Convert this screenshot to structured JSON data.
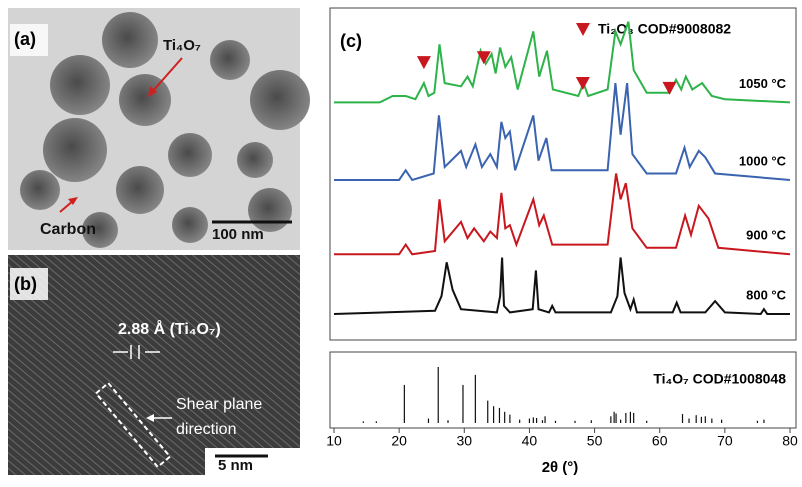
{
  "panel_a": {
    "label": "(a)",
    "particle_label": "Ti₄O₇",
    "carbon_label": "Carbon",
    "scale_bar": "100 nm"
  },
  "panel_b": {
    "label": "(b)",
    "spacing_label": "2.88 Å (Ti₄O₇)",
    "shear_label": [
      "Shear plane",
      "direction"
    ],
    "scale_bar": "5 nm"
  },
  "chart_data": [
    {
      "type": "line",
      "panel_label": "(c)",
      "xlim": [
        10,
        80
      ],
      "ylim": [
        0,
        100
      ],
      "series": [
        {
          "name": "1050 °C",
          "color": "#2db34a",
          "x": [
            10,
            17,
            19,
            21,
            22.5,
            23.8,
            24.5,
            25.4,
            26.2,
            27,
            29.5,
            30.5,
            31.3,
            32.5,
            33.3,
            34.2,
            34.8,
            35.5,
            36.3,
            37.2,
            38.2,
            40.6,
            41.5,
            42.7,
            43.6,
            47.5,
            48.3,
            49,
            52,
            53.2,
            54,
            55.2,
            56,
            58,
            61.5,
            62.5,
            63.3,
            64,
            65,
            66.5,
            68,
            70,
            80
          ],
          "values": [
            72,
            72,
            74,
            74,
            73,
            78,
            74,
            75,
            90,
            78,
            77,
            80,
            77,
            88,
            84,
            87,
            81,
            89,
            83,
            86,
            76,
            94,
            80,
            88,
            76,
            74,
            78,
            74,
            76,
            94,
            90,
            97,
            82,
            75,
            75,
            79,
            76,
            80,
            76,
            78,
            74,
            73,
            72
          ]
        },
        {
          "name": "1000 °C",
          "color": "#3a63b0",
          "x": [
            10,
            20,
            21,
            22,
            25.3,
            26.1,
            27,
            29.5,
            30.3,
            31.7,
            32.7,
            34,
            35,
            35.7,
            36.3,
            37,
            37.8,
            40.6,
            41.4,
            42.6,
            43.4,
            52,
            53.2,
            54,
            55,
            55.8,
            58,
            62.5,
            63.8,
            64.6,
            66,
            67,
            68.5,
            80
          ],
          "values": [
            48,
            48,
            51,
            48,
            50,
            68,
            52,
            57,
            52,
            59,
            52,
            56,
            52,
            66,
            61,
            63,
            51,
            68,
            54,
            61,
            51,
            51,
            78,
            62,
            78,
            56,
            50,
            50,
            58,
            52,
            57,
            55,
            50,
            48
          ]
        },
        {
          "name": "900 °C",
          "color": "#c8171e",
          "x": [
            10,
            20,
            21,
            22,
            25.5,
            26.2,
            27,
            29.5,
            30.5,
            31.5,
            33,
            34,
            35,
            35.7,
            36.3,
            37,
            38,
            40.6,
            41.5,
            42.2,
            43.5,
            52,
            53.3,
            54,
            54.8,
            55.8,
            58,
            62.5,
            63.9,
            64.8,
            66,
            67.5,
            69,
            80
          ],
          "values": [
            25,
            25,
            28,
            25,
            26,
            42,
            29,
            35,
            30,
            33,
            29,
            32,
            30,
            44,
            33,
            34,
            28,
            42,
            34,
            37,
            28,
            28,
            50,
            42,
            47,
            33,
            27,
            27,
            37,
            31,
            40,
            36,
            27,
            25
          ]
        },
        {
          "name": "800 °C",
          "color": "#111111",
          "x": [
            10,
            25.5,
            26.5,
            27.3,
            28.2,
            29.5,
            35,
            35.5,
            35.8,
            36.1,
            37,
            40.5,
            41,
            41.4,
            43,
            43.5,
            44,
            52.5,
            53.5,
            54,
            54.6,
            55.5,
            56,
            56.5,
            62,
            62.6,
            63.2,
            67,
            68.5,
            70,
            75.5,
            76,
            76.5,
            80
          ],
          "values": [
            6.5,
            7.5,
            12,
            22.5,
            14,
            8,
            7,
            12,
            24,
            9,
            7,
            8,
            20,
            8,
            7,
            9,
            7,
            7,
            12,
            24,
            13,
            8,
            11,
            7,
            7,
            10,
            7,
            7,
            10.5,
            7,
            6.5,
            8,
            6.5,
            6.5
          ]
        }
      ],
      "markers": {
        "name": "Ti₂O₃ COD#9008082",
        "color": "#c8171e",
        "x": [
          23.8,
          33,
          48.2,
          61.5
        ],
        "values": [
          84.5,
          86,
          78,
          76.5
        ]
      }
    },
    {
      "type": "stick",
      "name": "Ti₄O₇ COD#1008048",
      "color": "#111111",
      "xlim": [
        10,
        80
      ],
      "ylim": [
        0,
        100
      ],
      "xticks": [
        10,
        20,
        30,
        40,
        50,
        60,
        70,
        80
      ],
      "xlabel": "2θ (°)",
      "x": [
        14.5,
        16.5,
        20.8,
        24.5,
        26,
        27.5,
        29.8,
        31.7,
        33.6,
        34.5,
        35.4,
        36.2,
        37,
        38.5,
        40,
        40.6,
        41.1,
        42,
        42.4,
        44,
        47,
        49.5,
        52.5,
        53,
        53.3,
        54,
        54.8,
        55.5,
        56,
        58,
        63.5,
        64.5,
        65.6,
        66.4,
        67,
        68,
        69.5,
        75,
        76
      ],
      "values": [
        3,
        3,
        68,
        8,
        100,
        5,
        68,
        86,
        40,
        30,
        27,
        20,
        15,
        6,
        8,
        10,
        9,
        5,
        12,
        4,
        4,
        5,
        12,
        20,
        17,
        6,
        18,
        20,
        18,
        4,
        16,
        8,
        14,
        11,
        12,
        8,
        6,
        4,
        6
      ]
    }
  ]
}
